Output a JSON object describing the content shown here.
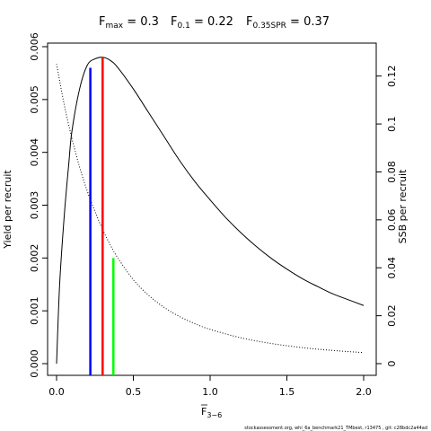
{
  "chart_data": {
    "type": "line",
    "title_parts": [
      {
        "main": "F",
        "sub": "max",
        "rest": " = 0.3"
      },
      {
        "main": "F",
        "sub": "0.1",
        "rest": " = 0.22"
      },
      {
        "main": "F",
        "sub": "0.35SPR",
        "rest": " = 0.37"
      }
    ],
    "xlabel": {
      "main": "F",
      "sub": "3−6"
    },
    "ylabel_left": "Yield per recruit",
    "ylabel_right": "SSB per recruit",
    "xlim": [
      0,
      2
    ],
    "ylim_left": [
      0,
      0.006
    ],
    "ylim_right": [
      0,
      0.13
    ],
    "x_ticks": [
      "0.0",
      "0.5",
      "1.0",
      "1.5",
      "2.0"
    ],
    "y_left_ticks": [
      "0.000",
      "0.001",
      "0.002",
      "0.003",
      "0.004",
      "0.005",
      "0.006"
    ],
    "y_right_ticks": [
      "0",
      "0.02",
      "0.04",
      "0.06",
      "0.08",
      "0.1",
      "0.12"
    ],
    "grid": false,
    "series": [
      {
        "name": "Yield per recruit",
        "axis": "left",
        "style": "solid",
        "color": "#000000",
        "x": [
          0.0,
          0.02,
          0.05,
          0.08,
          0.1,
          0.15,
          0.2,
          0.25,
          0.3,
          0.35,
          0.4,
          0.5,
          0.6,
          0.7,
          0.8,
          0.9,
          1.0,
          1.1,
          1.2,
          1.3,
          1.4,
          1.5,
          1.6,
          1.7,
          1.8,
          1.9,
          2.0
        ],
        "y": [
          0.0,
          0.0015,
          0.0028,
          0.0038,
          0.0044,
          0.0052,
          0.00565,
          0.00577,
          0.0058,
          0.00574,
          0.0056,
          0.0052,
          0.00475,
          0.0043,
          0.00385,
          0.00345,
          0.0031,
          0.00277,
          0.00248,
          0.00222,
          0.00199,
          0.00179,
          0.00161,
          0.00146,
          0.00132,
          0.00121,
          0.0011
        ]
      },
      {
        "name": "SSB per recruit",
        "axis": "right",
        "style": "dotted",
        "color": "#000000",
        "x": [
          0.0,
          0.05,
          0.1,
          0.15,
          0.2,
          0.25,
          0.3,
          0.35,
          0.4,
          0.5,
          0.6,
          0.7,
          0.8,
          0.9,
          1.0,
          1.2,
          1.4,
          1.6,
          1.8,
          2.0
        ],
        "y": [
          0.125,
          0.108,
          0.094,
          0.082,
          0.072,
          0.0635,
          0.056,
          0.0495,
          0.044,
          0.035,
          0.0285,
          0.0235,
          0.0197,
          0.0167,
          0.0143,
          0.0108,
          0.0084,
          0.0067,
          0.0055,
          0.0046
        ]
      }
    ],
    "reference_lines": [
      {
        "name": "F0.1",
        "x": 0.22,
        "y": 0.0056,
        "axis": "left",
        "color": "#0000ff"
      },
      {
        "name": "Fmax",
        "x": 0.3,
        "y": 0.0058,
        "axis": "left",
        "color": "#ff0000"
      },
      {
        "name": "F0.35SPR",
        "x": 0.37,
        "y": 0.002,
        "axis": "left",
        "color": "#00ff00"
      }
    ]
  },
  "footer": "stockassessment.org, whi_6a_benchmark21_TMbest, r13475 , git: c28bdc2a44ad"
}
